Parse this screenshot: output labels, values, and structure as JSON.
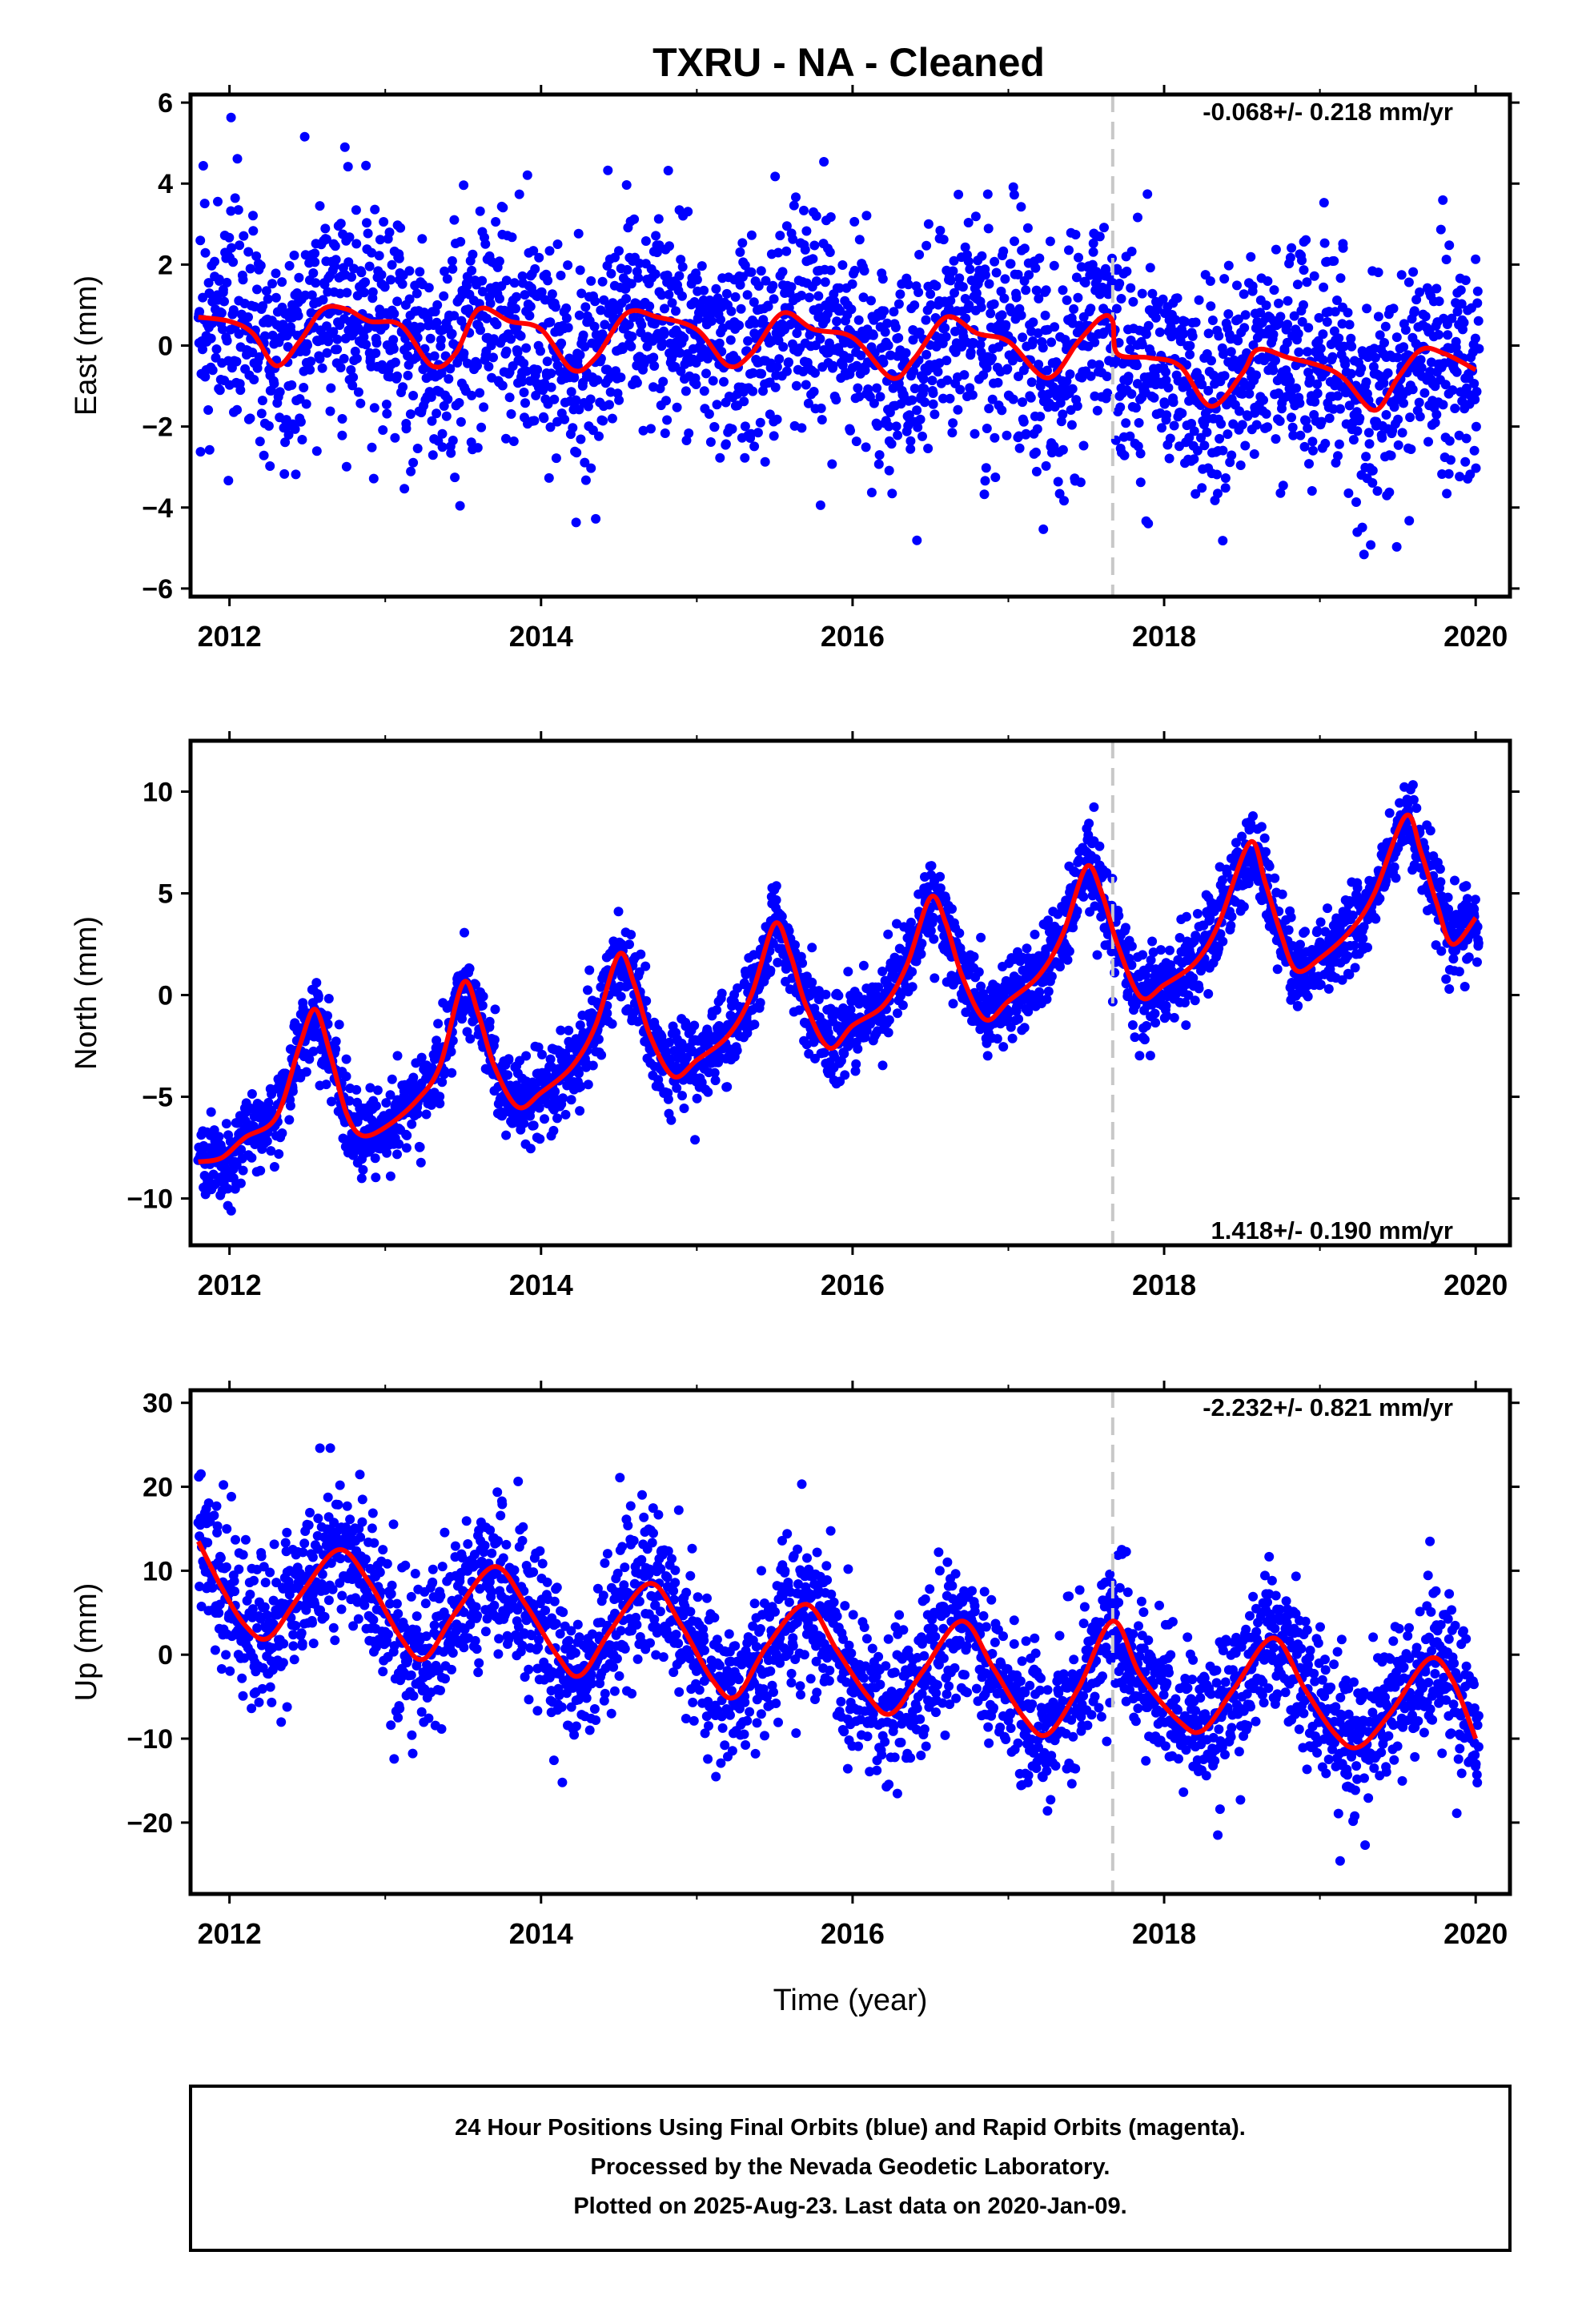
{
  "title": "TXRU  - NA - Cleaned",
  "xlabel": "Time (year)",
  "colors": {
    "points": "#0000ff",
    "fit": "#ff0000",
    "event_line": "#c8c8c8",
    "axis": "#000000"
  },
  "footer": {
    "line1": "24 Hour Positions Using Final Orbits (blue) and Rapid Orbits (magenta).",
    "line2": "Processed by the Nevada Geodetic Laboratory.",
    "line3": "Plotted on 2025-Aug-23. Last data on 2020-Jan-09."
  },
  "chart_data": [
    {
      "type": "scatter",
      "component": "East",
      "ylabel": "East (mm)",
      "rate": "-0.068+/- 0.218 mm/yr",
      "xlim": [
        2011.75,
        2020.22
      ],
      "ylim": [
        -6.2,
        6.2
      ],
      "xticks": [
        2012,
        2014,
        2016,
        2018,
        2020
      ],
      "xtick_labels": [
        "2012",
        "2014",
        "2016",
        "2018",
        "2020"
      ],
      "yticks": [
        -6,
        -4,
        -2,
        0,
        2,
        4,
        6
      ],
      "ytick_labels": [
        "−6",
        "−4",
        "−2",
        "0",
        "2",
        "4",
        "6"
      ],
      "event_line_x": 2017.67,
      "x_span": [
        2011.8,
        2020.02
      ],
      "series": [
        {
          "label": "24 Hour Positions Using Final Orbits (blue)",
          "kind": "points",
          "color": "#0000ff",
          "data_range": [
            2011.8,
            2020.02
          ],
          "scatter_sd": 1.35,
          "approx_points": 2800
        },
        {
          "label": "model fit",
          "kind": "line",
          "color": "#ff0000",
          "points": [
            [
              2011.8,
              0.7
            ],
            [
              2012.0,
              0.6
            ],
            [
              2012.15,
              0.3
            ],
            [
              2012.3,
              -0.5
            ],
            [
              2012.45,
              0.1
            ],
            [
              2012.6,
              0.9
            ],
            [
              2012.75,
              0.9
            ],
            [
              2012.9,
              0.6
            ],
            [
              2013.1,
              0.5
            ],
            [
              2013.3,
              -0.5
            ],
            [
              2013.45,
              -0.2
            ],
            [
              2013.6,
              0.9
            ],
            [
              2013.8,
              0.6
            ],
            [
              2014.0,
              0.4
            ],
            [
              2014.2,
              -0.6
            ],
            [
              2014.35,
              -0.3
            ],
            [
              2014.55,
              0.8
            ],
            [
              2014.75,
              0.7
            ],
            [
              2015.0,
              0.4
            ],
            [
              2015.2,
              -0.5
            ],
            [
              2015.35,
              -0.2
            ],
            [
              2015.55,
              0.8
            ],
            [
              2015.75,
              0.4
            ],
            [
              2016.0,
              0.2
            ],
            [
              2016.25,
              -0.8
            ],
            [
              2016.4,
              -0.3
            ],
            [
              2016.6,
              0.7
            ],
            [
              2016.8,
              0.3
            ],
            [
              2017.0,
              0.1
            ],
            [
              2017.25,
              -0.8
            ],
            [
              2017.45,
              0.1
            ],
            [
              2017.6,
              0.7
            ],
            [
              2017.67,
              0.6
            ],
            [
              2017.7,
              -0.2
            ],
            [
              2017.9,
              -0.3
            ],
            [
              2018.1,
              -0.5
            ],
            [
              2018.3,
              -1.5
            ],
            [
              2018.5,
              -0.7
            ],
            [
              2018.6,
              -0.1
            ],
            [
              2018.8,
              -0.3
            ],
            [
              2019.0,
              -0.5
            ],
            [
              2019.15,
              -0.8
            ],
            [
              2019.35,
              -1.6
            ],
            [
              2019.5,
              -0.8
            ],
            [
              2019.65,
              -0.1
            ],
            [
              2019.8,
              -0.2
            ],
            [
              2020.0,
              -0.6
            ]
          ]
        }
      ]
    },
    {
      "type": "scatter",
      "component": "North",
      "ylabel": "North (mm)",
      "rate": "1.418+/- 0.190 mm/yr",
      "xlim": [
        2011.75,
        2020.22
      ],
      "ylim": [
        -12.3,
        12.5
      ],
      "xticks": [
        2012,
        2014,
        2016,
        2018,
        2020
      ],
      "xtick_labels": [
        "2012",
        "2014",
        "2016",
        "2018",
        "2020"
      ],
      "yticks": [
        -10,
        -5,
        0,
        5,
        10
      ],
      "ytick_labels": [
        "−10",
        "−5",
        "0",
        "5",
        "10"
      ],
      "event_line_x": 2017.67,
      "x_span": [
        2011.8,
        2020.02
      ],
      "series": [
        {
          "label": "24 Hour Positions Using Final Orbits (blue)",
          "kind": "points",
          "color": "#0000ff",
          "data_range": [
            2011.8,
            2020.02
          ],
          "scatter_sd": 1.0,
          "approx_points": 2800
        },
        {
          "label": "model fit",
          "kind": "line",
          "color": "#ff0000",
          "points": [
            [
              2011.8,
              -8.2
            ],
            [
              2011.95,
              -8.0
            ],
            [
              2012.1,
              -7.0
            ],
            [
              2012.3,
              -6.0
            ],
            [
              2012.45,
              -2.5
            ],
            [
              2012.55,
              -0.7
            ],
            [
              2012.65,
              -3.0
            ],
            [
              2012.75,
              -5.8
            ],
            [
              2012.85,
              -6.9
            ],
            [
              2013.0,
              -6.5
            ],
            [
              2013.2,
              -5.2
            ],
            [
              2013.35,
              -3.5
            ],
            [
              2013.5,
              0.6
            ],
            [
              2013.6,
              -1.0
            ],
            [
              2013.7,
              -3.5
            ],
            [
              2013.85,
              -5.5
            ],
            [
              2014.0,
              -4.8
            ],
            [
              2014.2,
              -3.5
            ],
            [
              2014.35,
              -1.5
            ],
            [
              2014.5,
              2.0
            ],
            [
              2014.6,
              0.5
            ],
            [
              2014.7,
              -2.0
            ],
            [
              2014.85,
              -4.0
            ],
            [
              2015.0,
              -3.2
            ],
            [
              2015.2,
              -2.0
            ],
            [
              2015.35,
              0.0
            ],
            [
              2015.5,
              3.5
            ],
            [
              2015.6,
              2.0
            ],
            [
              2015.7,
              -0.5
            ],
            [
              2015.85,
              -2.6
            ],
            [
              2016.0,
              -1.5
            ],
            [
              2016.2,
              -0.5
            ],
            [
              2016.35,
              1.5
            ],
            [
              2016.5,
              4.8
            ],
            [
              2016.6,
              3.5
            ],
            [
              2016.7,
              1.0
            ],
            [
              2016.85,
              -1.2
            ],
            [
              2017.0,
              -0.3
            ],
            [
              2017.2,
              1.0
            ],
            [
              2017.35,
              3.0
            ],
            [
              2017.5,
              6.3
            ],
            [
              2017.6,
              5.0
            ],
            [
              2017.7,
              2.5
            ],
            [
              2017.85,
              -0.1
            ],
            [
              2018.0,
              0.5
            ],
            [
              2018.2,
              1.6
            ],
            [
              2018.35,
              3.5
            ],
            [
              2018.55,
              7.5
            ],
            [
              2018.65,
              5.5
            ],
            [
              2018.75,
              3.0
            ],
            [
              2018.85,
              1.2
            ],
            [
              2019.0,
              1.8
            ],
            [
              2019.2,
              3.2
            ],
            [
              2019.35,
              5.0
            ],
            [
              2019.55,
              8.8
            ],
            [
              2019.65,
              7.0
            ],
            [
              2019.75,
              4.5
            ],
            [
              2019.85,
              2.5
            ],
            [
              2020.0,
              3.8
            ]
          ]
        }
      ]
    },
    {
      "type": "scatter",
      "component": "Up",
      "ylabel": "Up (mm)",
      "rate": "-2.232+/- 0.821 mm/yr",
      "xlim": [
        2011.75,
        2020.22
      ],
      "ylim": [
        -28.5,
        31.5
      ],
      "xticks": [
        2012,
        2014,
        2016,
        2018,
        2020
      ],
      "xtick_labels": [
        "2012",
        "2014",
        "2016",
        "2018",
        "2020"
      ],
      "yticks": [
        -20,
        -10,
        0,
        10,
        20,
        30
      ],
      "ytick_labels": [
        "−20",
        "−10",
        "0",
        "10",
        "20",
        "30"
      ],
      "event_line_x": 2017.67,
      "x_span": [
        2011.8,
        2020.02
      ],
      "series": [
        {
          "label": "24 Hour Positions Using Final Orbits (blue)",
          "kind": "points",
          "color": "#0000ff",
          "data_range": [
            2011.8,
            2020.02
          ],
          "scatter_sd": 4.5,
          "approx_points": 2800
        },
        {
          "label": "model fit",
          "kind": "line",
          "color": "#ff0000",
          "points": [
            [
              2011.8,
              13.5
            ],
            [
              2011.95,
              8.0
            ],
            [
              2012.1,
              3.5
            ],
            [
              2012.25,
              2.0
            ],
            [
              2012.45,
              7.0
            ],
            [
              2012.7,
              12.5
            ],
            [
              2012.9,
              8.5
            ],
            [
              2013.1,
              2.0
            ],
            [
              2013.25,
              -0.5
            ],
            [
              2013.45,
              5.0
            ],
            [
              2013.7,
              10.5
            ],
            [
              2013.9,
              6.0
            ],
            [
              2014.1,
              0.0
            ],
            [
              2014.25,
              -2.5
            ],
            [
              2014.45,
              3.0
            ],
            [
              2014.7,
              8.5
            ],
            [
              2014.9,
              3.5
            ],
            [
              2015.1,
              -3.0
            ],
            [
              2015.25,
              -5.0
            ],
            [
              2015.45,
              1.0
            ],
            [
              2015.7,
              6.0
            ],
            [
              2015.9,
              0.5
            ],
            [
              2016.1,
              -5.0
            ],
            [
              2016.25,
              -7.0
            ],
            [
              2016.45,
              -2.0
            ],
            [
              2016.7,
              4.0
            ],
            [
              2016.9,
              -1.5
            ],
            [
              2017.1,
              -7.5
            ],
            [
              2017.25,
              -9.5
            ],
            [
              2017.45,
              -4.0
            ],
            [
              2017.67,
              4.0
            ],
            [
              2017.85,
              -2.5
            ],
            [
              2018.1,
              -8.0
            ],
            [
              2018.25,
              -9.0
            ],
            [
              2018.45,
              -4.0
            ],
            [
              2018.7,
              2.0
            ],
            [
              2018.9,
              -4.0
            ],
            [
              2019.1,
              -9.5
            ],
            [
              2019.25,
              -11.0
            ],
            [
              2019.45,
              -7.0
            ],
            [
              2019.7,
              -0.5
            ],
            [
              2019.85,
              -3.0
            ],
            [
              2020.0,
              -10.0
            ]
          ]
        }
      ]
    }
  ]
}
